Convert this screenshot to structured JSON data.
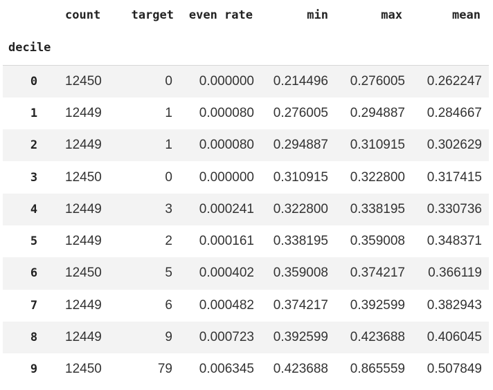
{
  "table": {
    "columns": {
      "count": "count",
      "target": "target",
      "even_rate": "even rate",
      "min": "min",
      "max": "max",
      "mean": "mean"
    },
    "index_name": "decile",
    "rows": [
      {
        "idx": "0",
        "count": "12450",
        "target": "0",
        "even_rate": "0.000000",
        "min": "0.214496",
        "max": "0.276005",
        "mean": "0.262247"
      },
      {
        "idx": "1",
        "count": "12449",
        "target": "1",
        "even_rate": "0.000080",
        "min": "0.276005",
        "max": "0.294887",
        "mean": "0.284667"
      },
      {
        "idx": "2",
        "count": "12449",
        "target": "1",
        "even_rate": "0.000080",
        "min": "0.294887",
        "max": "0.310915",
        "mean": "0.302629"
      },
      {
        "idx": "3",
        "count": "12450",
        "target": "0",
        "even_rate": "0.000000",
        "min": "0.310915",
        "max": "0.322800",
        "mean": "0.317415"
      },
      {
        "idx": "4",
        "count": "12449",
        "target": "3",
        "even_rate": "0.000241",
        "min": "0.322800",
        "max": "0.338195",
        "mean": "0.330736"
      },
      {
        "idx": "5",
        "count": "12449",
        "target": "2",
        "even_rate": "0.000161",
        "min": "0.338195",
        "max": "0.359008",
        "mean": "0.348371"
      },
      {
        "idx": "6",
        "count": "12450",
        "target": "5",
        "even_rate": "0.000402",
        "min": "0.359008",
        "max": "0.374217",
        "mean": "0.366119"
      },
      {
        "idx": "7",
        "count": "12449",
        "target": "6",
        "even_rate": "0.000482",
        "min": "0.374217",
        "max": "0.392599",
        "mean": "0.382943"
      },
      {
        "idx": "8",
        "count": "12449",
        "target": "9",
        "even_rate": "0.000723",
        "min": "0.392599",
        "max": "0.423688",
        "mean": "0.406045"
      },
      {
        "idx": "9",
        "count": "12450",
        "target": "79",
        "even_rate": "0.006345",
        "min": "0.423688",
        "max": "0.865559",
        "mean": "0.507849"
      }
    ]
  },
  "colors": {
    "stripe": "#f3f3f3",
    "divider": "#d6d6d6"
  }
}
